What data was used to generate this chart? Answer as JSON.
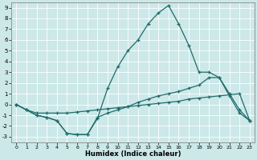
{
  "xlabel": "Humidex (Indice chaleur)",
  "background_color": "#cce8e8",
  "grid_color": "#ffffff",
  "line_color": "#1f6b6b",
  "xlim": [
    -0.5,
    23.5
  ],
  "ylim": [
    -3.5,
    9.5
  ],
  "xticks": [
    0,
    1,
    2,
    3,
    4,
    5,
    6,
    7,
    8,
    9,
    10,
    11,
    12,
    13,
    14,
    15,
    16,
    17,
    18,
    19,
    20,
    21,
    22,
    23
  ],
  "yticks": [
    -3,
    -2,
    -1,
    0,
    1,
    2,
    3,
    4,
    5,
    6,
    7,
    8,
    9
  ],
  "line1_x": [
    0,
    1,
    2,
    3,
    4,
    5,
    6,
    7,
    8,
    9,
    10,
    11,
    12,
    13,
    14,
    15,
    16,
    17,
    18,
    19,
    20,
    21,
    22,
    23
  ],
  "line1_y": [
    0,
    -0.5,
    -1.0,
    -1.2,
    -1.5,
    -2.7,
    -2.8,
    -2.8,
    -1.3,
    1.5,
    3.5,
    5.0,
    6.0,
    7.5,
    8.5,
    9.2,
    7.5,
    5.5,
    3.0,
    3.0,
    2.5,
    0.8,
    -0.8,
    -1.5
  ],
  "line2_x": [
    0,
    1,
    2,
    3,
    4,
    5,
    6,
    7,
    8,
    9,
    10,
    11,
    12,
    13,
    14,
    15,
    16,
    17,
    18,
    19,
    20,
    21,
    22,
    23
  ],
  "line2_y": [
    0,
    -0.5,
    -1.0,
    -1.2,
    -1.5,
    -2.7,
    -2.8,
    -2.8,
    -1.2,
    -0.8,
    -0.5,
    -0.2,
    0.2,
    0.5,
    0.8,
    1.0,
    1.2,
    1.5,
    1.8,
    2.5,
    2.5,
    1.0,
    -0.5,
    -1.5
  ],
  "line3_x": [
    0,
    1,
    2,
    3,
    4,
    5,
    6,
    7,
    8,
    9,
    10,
    11,
    12,
    13,
    14,
    15,
    16,
    17,
    18,
    19,
    20,
    21,
    22,
    23
  ],
  "line3_y": [
    0,
    -0.5,
    -0.8,
    -0.8,
    -0.8,
    -0.8,
    -0.7,
    -0.6,
    -0.5,
    -0.4,
    -0.3,
    -0.2,
    -0.1,
    0.0,
    0.1,
    0.2,
    0.3,
    0.5,
    0.6,
    0.7,
    0.8,
    0.9,
    1.0,
    -1.5
  ]
}
